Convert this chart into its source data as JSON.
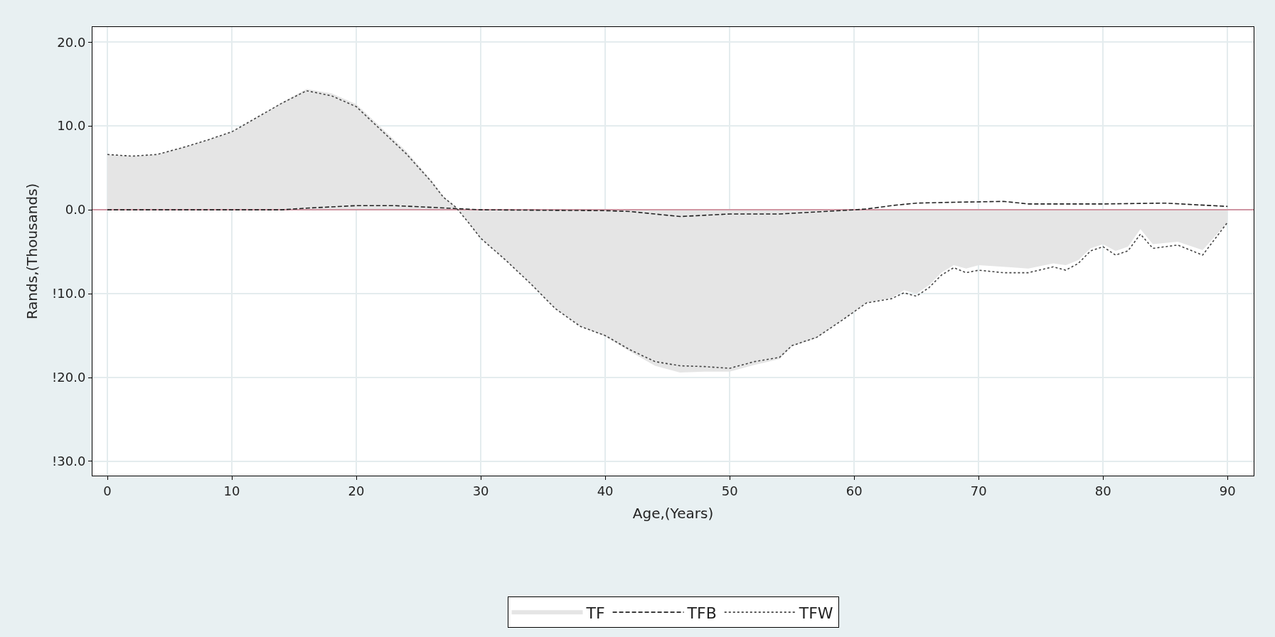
{
  "chart_data": {
    "type": "line",
    "xlabel": "Age,(Years)",
    "ylabel": "Rands,(Thousands)",
    "xlim": [
      -1.2,
      92.1
    ],
    "ylim": [
      -31.7,
      21.8
    ],
    "xticks": [
      0,
      10,
      20,
      30,
      40,
      50,
      60,
      70,
      80,
      90
    ],
    "yticks": [
      {
        "value": 20,
        "label": "20.0"
      },
      {
        "value": 10,
        "label": "10.0"
      },
      {
        "value": 0,
        "label": "0.0"
      },
      {
        "value": -10,
        "label": "!10.0"
      },
      {
        "value": -20,
        "label": "!20.0"
      },
      {
        "value": -30,
        "label": "!30.0"
      }
    ],
    "grid": true,
    "legend": "bottom",
    "ref_lines": [
      {
        "axis": "y",
        "value": 0,
        "color": "#c87a8a"
      }
    ],
    "series": [
      {
        "name": "TF",
        "type": "area",
        "color": "#e5e5e5",
        "x": [
          0,
          2,
          4,
          6,
          8,
          10,
          12,
          14,
          16,
          18,
          20,
          22,
          24,
          26,
          27,
          28,
          29,
          30,
          32,
          34,
          36,
          38,
          40,
          42,
          44,
          46,
          48,
          50,
          52,
          54,
          55,
          57,
          59,
          61,
          63,
          64,
          65,
          66,
          67,
          68,
          69,
          70,
          72,
          74,
          76,
          77,
          78,
          79,
          80,
          81,
          82,
          83,
          84,
          86,
          88,
          90
        ],
        "values": [
          6.6,
          6.4,
          6.6,
          7.4,
          8.3,
          9.3,
          11.0,
          12.8,
          14.4,
          13.9,
          12.6,
          9.8,
          7.0,
          3.6,
          1.6,
          0.3,
          -1.5,
          -3.4,
          -6.0,
          -8.8,
          -11.8,
          -13.9,
          -15.1,
          -16.9,
          -18.6,
          -19.4,
          -19.3,
          -19.3,
          -18.5,
          -17.8,
          -16.3,
          -15.3,
          -13.2,
          -11.1,
          -10.5,
          -9.6,
          -10.0,
          -9.0,
          -7.5,
          -6.6,
          -7.0,
          -6.6,
          -6.8,
          -7.0,
          -6.4,
          -6.6,
          -6.0,
          -4.6,
          -4.1,
          -4.9,
          -4.4,
          -2.3,
          -4.1,
          -3.8,
          -4.8,
          -1.5
        ]
      },
      {
        "name": "TFB",
        "line_style": "dashed",
        "color": "#222222",
        "x": [
          0,
          14,
          16,
          20,
          23,
          26,
          30,
          40,
          42,
          46,
          50,
          54,
          60,
          61,
          63,
          65,
          68,
          72,
          74,
          80,
          85,
          90
        ],
        "values": [
          0,
          0,
          0.2,
          0.5,
          0.5,
          0.3,
          0,
          -0.1,
          -0.2,
          -0.8,
          -0.5,
          -0.5,
          0,
          0.1,
          0.5,
          0.8,
          0.9,
          1.0,
          0.7,
          0.7,
          0.8,
          0.4
        ]
      },
      {
        "name": "TFW",
        "line_style": "dotted",
        "color": "#444444",
        "x": [
          0,
          2,
          4,
          6,
          8,
          10,
          12,
          14,
          16,
          18,
          20,
          22,
          24,
          26,
          27,
          28,
          29,
          30,
          32,
          34,
          36,
          38,
          40,
          42,
          44,
          46,
          48,
          50,
          52,
          54,
          55,
          57,
          59,
          61,
          63,
          64,
          65,
          66,
          67,
          68,
          69,
          70,
          72,
          74,
          76,
          77,
          78,
          79,
          80,
          81,
          82,
          83,
          84,
          86,
          88,
          90
        ],
        "values": [
          6.6,
          6.4,
          6.6,
          7.4,
          8.3,
          9.3,
          11.0,
          12.7,
          14.2,
          13.6,
          12.3,
          9.5,
          6.7,
          3.4,
          1.5,
          0.3,
          -1.5,
          -3.4,
          -6.0,
          -8.8,
          -11.8,
          -13.9,
          -15.0,
          -16.7,
          -18.1,
          -18.6,
          -18.7,
          -18.9,
          -18.1,
          -17.6,
          -16.2,
          -15.2,
          -13.2,
          -11.1,
          -10.6,
          -9.9,
          -10.3,
          -9.3,
          -7.8,
          -6.9,
          -7.5,
          -7.2,
          -7.5,
          -7.5,
          -6.8,
          -7.2,
          -6.4,
          -4.9,
          -4.4,
          -5.4,
          -4.9,
          -2.9,
          -4.6,
          -4.2,
          -5.4,
          -1.5
        ]
      }
    ]
  }
}
